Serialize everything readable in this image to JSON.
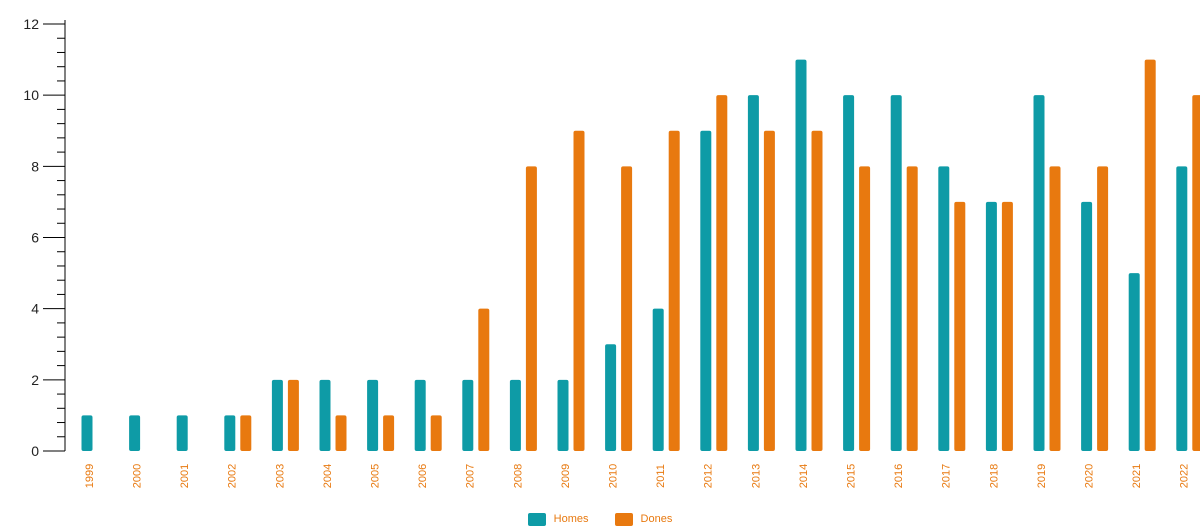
{
  "chart_data": {
    "type": "bar",
    "categories": [
      "1999",
      "2000",
      "2001",
      "2002",
      "2003",
      "2004",
      "2005",
      "2006",
      "2007",
      "2008",
      "2009",
      "2010",
      "2011",
      "2012",
      "2013",
      "2014",
      "2015",
      "2016",
      "2017",
      "2018",
      "2019",
      "2020",
      "2021",
      "2022"
    ],
    "series": [
      {
        "name": "Homes",
        "color": "#0e9ba6",
        "values": [
          1,
          1,
          1,
          1,
          2,
          2,
          2,
          2,
          2,
          2,
          2,
          3,
          4,
          9,
          10,
          11,
          10,
          10,
          8,
          7,
          10,
          7,
          5,
          8
        ]
      },
      {
        "name": "Dones",
        "color": "#e8790f",
        "values": [
          0,
          0,
          0,
          1,
          2,
          1,
          1,
          1,
          4,
          8,
          9,
          8,
          9,
          10,
          9,
          9,
          8,
          8,
          7,
          7,
          8,
          8,
          11,
          10
        ]
      }
    ],
    "ylim": [
      0,
      12
    ],
    "yticks": [
      0,
      2,
      4,
      6,
      8,
      10,
      12
    ],
    "grid": false,
    "legend_position": "bottom-center"
  }
}
